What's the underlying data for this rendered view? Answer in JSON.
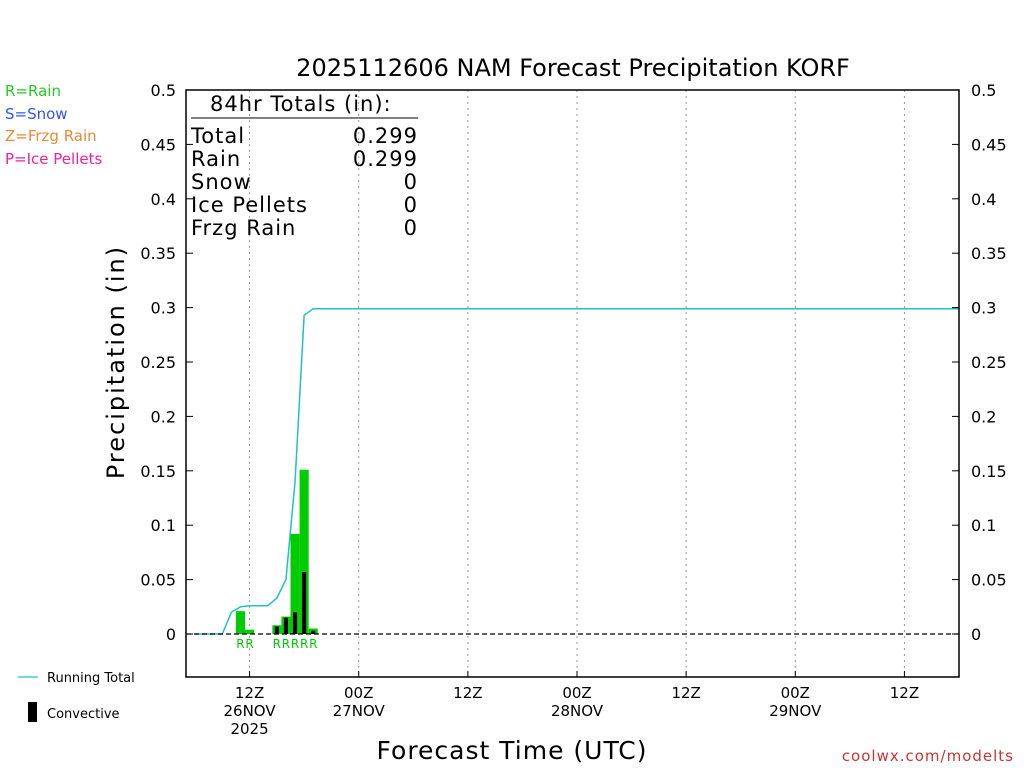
{
  "chart_data": {
    "type": "bar",
    "title": "2025112606 NAM Forecast Precipitation KORF",
    "ylabel": "Precipitation (in)",
    "xlabel": "Forecast Time (UTC)",
    "ylim": [
      -0.04,
      0.5
    ],
    "y_ticks": [
      "0.5",
      "0.45",
      "0.4",
      "0.35",
      "0.3",
      "0.25",
      "0.2",
      "0.15",
      "0.1",
      "0.05",
      "0"
    ],
    "y_tick_values": [
      0.5,
      0.45,
      0.4,
      0.35,
      0.3,
      0.25,
      0.2,
      0.15,
      0.1,
      0.05,
      0
    ],
    "x_range_hours": [
      0,
      84
    ],
    "x_ticks": [
      {
        "hour": 6,
        "l1": "12Z",
        "l2": "26NOV",
        "l3": "2025"
      },
      {
        "hour": 18,
        "l1": "00Z",
        "l2": "27NOV",
        "l3": ""
      },
      {
        "hour": 30,
        "l1": "12Z",
        "l2": "",
        "l3": ""
      },
      {
        "hour": 42,
        "l1": "00Z",
        "l2": "28NOV",
        "l3": ""
      },
      {
        "hour": 54,
        "l1": "12Z",
        "l2": "",
        "l3": ""
      },
      {
        "hour": 66,
        "l1": "00Z",
        "l2": "29NOV",
        "l3": ""
      },
      {
        "hour": 78,
        "l1": "12Z",
        "l2": "",
        "l3": ""
      }
    ],
    "grid": "vertical dotted",
    "series": [
      {
        "name": "Running Total",
        "kind": "line",
        "color": "#20c0c8",
        "x": [
          0,
          3,
          4,
          5,
          6,
          7,
          8,
          9,
          10,
          11,
          12,
          13,
          84
        ],
        "values": [
          0,
          0,
          0.02,
          0.025,
          0.026,
          0.026,
          0.026,
          0.033,
          0.05,
          0.14,
          0.293,
          0.299,
          0.299
        ]
      },
      {
        "name": "Rain",
        "kind": "bar",
        "color": "#00cc00",
        "x": [
          5,
          6,
          9,
          10,
          11,
          12,
          13
        ],
        "values": [
          0.021,
          0.004,
          0.008,
          0.016,
          0.092,
          0.151,
          0.005
        ]
      },
      {
        "name": "Convective",
        "kind": "bar",
        "color": "#000000",
        "x": [
          9,
          10,
          11,
          12,
          13
        ],
        "values": [
          0.007,
          0.015,
          0.02,
          0.057,
          0.003
        ]
      }
    ],
    "type_labels": [
      {
        "hour": 5,
        "text": "R"
      },
      {
        "hour": 6,
        "text": "R"
      },
      {
        "hour": 9,
        "text": "R"
      },
      {
        "hour": 10,
        "text": "R"
      },
      {
        "hour": 11,
        "text": "R"
      },
      {
        "hour": 12,
        "text": "R"
      },
      {
        "hour": 13,
        "text": "R"
      }
    ]
  },
  "totals_box": {
    "header": "84hr Totals (in):",
    "rows": [
      {
        "label": "Total",
        "value": "0.299"
      },
      {
        "label": "Rain",
        "value": "0.299"
      },
      {
        "label": "Snow",
        "value": "0"
      },
      {
        "label": "Ice Pellets",
        "value": "0"
      },
      {
        "label": "Frzg Rain",
        "value": "0"
      }
    ]
  },
  "type_legend": [
    {
      "text": "R=Rain",
      "color": "#22cc22"
    },
    {
      "text": "S=Snow",
      "color": "#3355ee"
    },
    {
      "text": "Z=Frzg Rain",
      "color": "#ee8833"
    },
    {
      "text": "P=Ice Pellets",
      "color": "#ee2299"
    }
  ],
  "bottom_legend": {
    "running_total": "Running Total",
    "convective": "Convective"
  },
  "credit": "coolwx.com/modelts",
  "colors": {
    "running_total": "#20c0c8",
    "rain": "#00cc00",
    "convective": "#000000",
    "credit": "#cc3333"
  }
}
